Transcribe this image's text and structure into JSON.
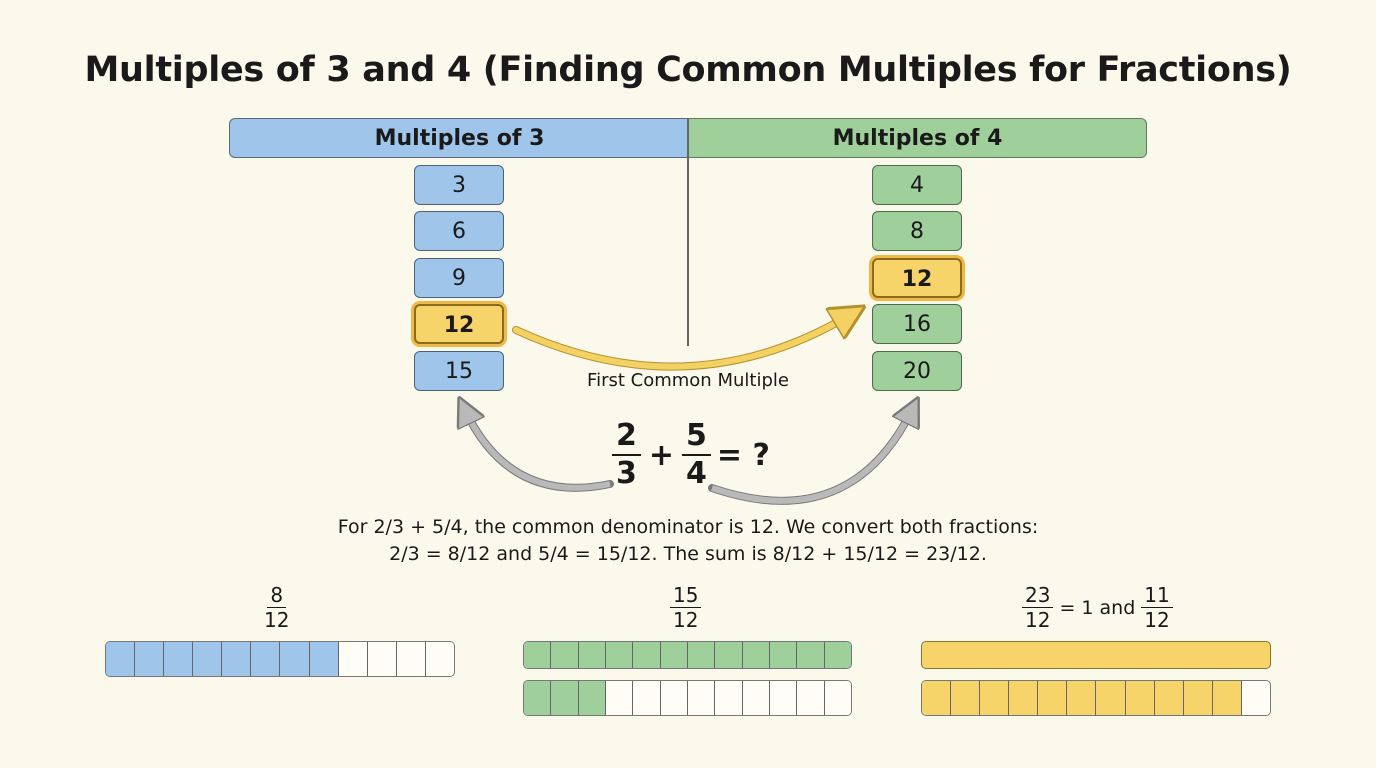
{
  "title": "Multiples of 3 and 4 (Finding Common Multiples for Fractions)",
  "columns": [
    {
      "header": "Multiples of 3",
      "color": "#9fc5ea",
      "values": [
        "3",
        "6",
        "9",
        "12",
        "15"
      ],
      "highlight_index": 3
    },
    {
      "header": "Multiples of 4",
      "color": "#9fcf9a",
      "values": [
        "4",
        "8",
        "12",
        "16",
        "20"
      ],
      "highlight_index": 2
    }
  ],
  "highlight_color": "#f7d46a",
  "arrow_label": "First Common Multiple",
  "equation": {
    "a_num": "2",
    "a_den": "3",
    "plus": "+",
    "b_num": "5",
    "b_den": "4",
    "result": "= ?"
  },
  "explanation": {
    "line1": "For 2/3 + 5/4, the common denominator is 12. We convert both fractions:",
    "line2": "2/3 = 8/12 and 5/4 = 15/12. The sum is 8/12 + 15/12 = 23/12."
  },
  "fraction_bars": [
    {
      "label_num": "8",
      "label_den": "12",
      "color": "#9fc5ea",
      "rows": [
        {
          "filled": 8,
          "total": 12
        }
      ]
    },
    {
      "label_num": "15",
      "label_den": "12",
      "color": "#9fcf9a",
      "rows": [
        {
          "filled": 12,
          "total": 12
        },
        {
          "filled": 3,
          "total": 12
        }
      ]
    },
    {
      "label_num": "23",
      "label_den": "12",
      "mixed_text": "= 1 and",
      "mixed_num": "11",
      "mixed_den": "12",
      "color": "#f7d46a",
      "rows": [
        {
          "filled": 1,
          "total": 1
        },
        {
          "filled": 11,
          "total": 12
        }
      ]
    }
  ]
}
